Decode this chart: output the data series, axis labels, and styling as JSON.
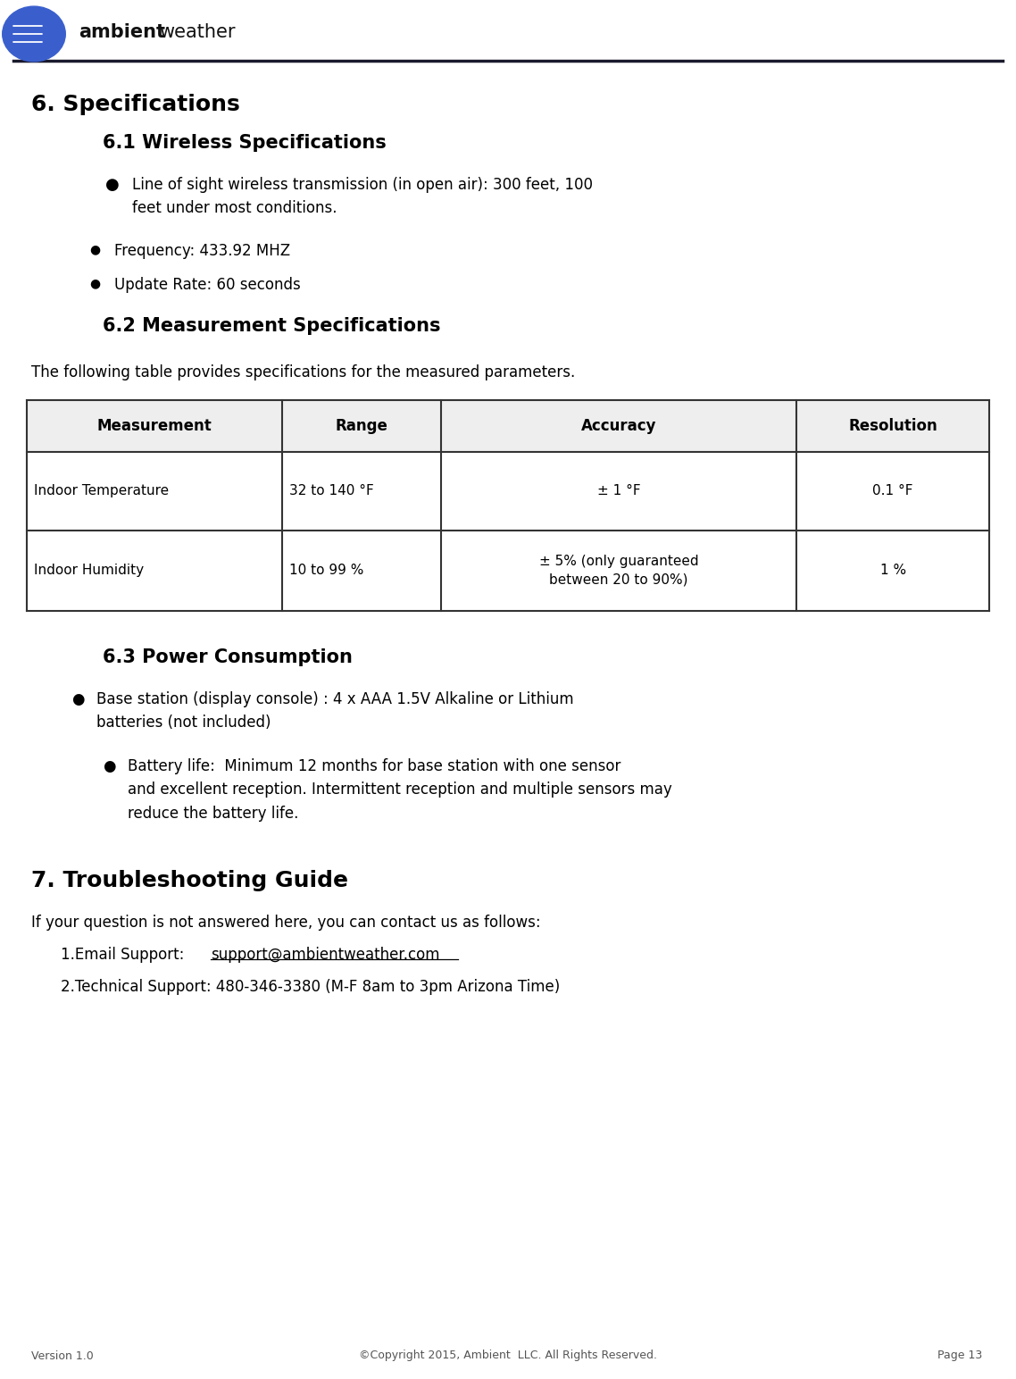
{
  "page_width": 11.38,
  "page_height": 15.44,
  "bg_color": "#ffffff",
  "header_line_color": "#1a1a2e",
  "logo_text_bold": "ambient",
  "logo_text_regular": " weather",
  "section6_title": "6. Specifications",
  "section61_title": "6.1 Wireless Specifications",
  "bullet1_text": "Line of sight wireless transmission (in open air): 300 feet, 100\nfeet under most conditions.",
  "bullet2_text": "Frequency: 433.92 MHZ",
  "bullet3_text": "Update Rate: 60 seconds",
  "section62_title": "6.2 Measurement Specifications",
  "table_intro": "The following table provides specifications for the measured parameters.",
  "table_headers": [
    "Measurement",
    "Range",
    "Accuracy",
    "Resolution"
  ],
  "table_row1": [
    "Indoor Temperature",
    "32 to 140 °F",
    "± 1 °F",
    "0.1 °F"
  ],
  "table_row2": [
    "Indoor Humidity",
    "10 to 99 %",
    "± 5% (only guaranteed\nbetween 20 to 90%)",
    "1 %"
  ],
  "section63_title": "6.3 Power Consumption",
  "bullet4_text": "Base station (display console) : 4 x AAA 1.5V Alkaline or Lithium\nbatteries (not included)",
  "bullet5_text": "Battery life:  Minimum 12 months for base station with one sensor\nand excellent reception. Intermittent reception and multiple sensors may\nreduce the battery life.",
  "section7_title": "7. Troubleshooting Guide",
  "section7_intro": "If your question is not answered here, you can contact us as follows:",
  "contact1_prefix": "1.Email Support: ",
  "contact1_email": "support@ambientweather.com",
  "contact2": "2.Technical Support: 480-346-3380 (M-F 8am to 3pm Arizona Time)",
  "footer_left": "Version 1.0",
  "footer_center": "©Copyright 2015, Ambient  LLC. All Rights Reserved.",
  "footer_right": "Page 13",
  "table_border_color": "#333333",
  "table_header_bg": "#eeeeee",
  "text_color": "#000000"
}
